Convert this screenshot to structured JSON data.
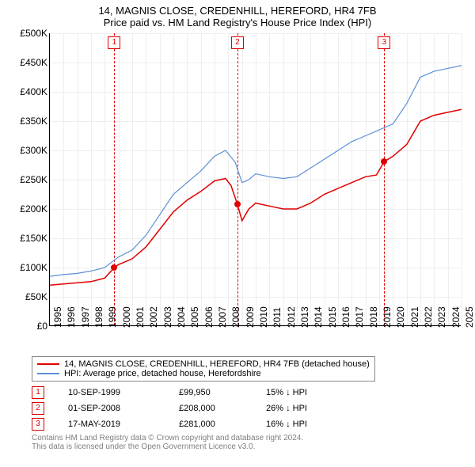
{
  "title": "14, MAGNIS CLOSE, CREDENHILL, HEREFORD, HR4 7FB",
  "subtitle": "Price paid vs. HM Land Registry's House Price Index (HPI)",
  "chart": {
    "type": "line",
    "background_color": "#ffffff",
    "grid_color": "#eeeeee",
    "axis_color": "#000000",
    "label_fontsize": 12,
    "title_fontsize": 13,
    "ylim": [
      0,
      500000
    ],
    "ytick_step": 50000,
    "y_prefix": "£",
    "y_unit": "K",
    "yticks": [
      "£0",
      "£50K",
      "£100K",
      "£150K",
      "£200K",
      "£250K",
      "£300K",
      "£350K",
      "£400K",
      "£450K",
      "£500K"
    ],
    "x_years": [
      1995,
      1996,
      1997,
      1998,
      1999,
      2000,
      2001,
      2002,
      2003,
      2004,
      2005,
      2006,
      2007,
      2008,
      2009,
      2010,
      2011,
      2012,
      2013,
      2014,
      2015,
      2016,
      2017,
      2018,
      2019,
      2020,
      2021,
      2022,
      2023,
      2024,
      2025
    ],
    "series": [
      {
        "name": "price_paid",
        "label": "14, MAGNIS CLOSE, CREDENHILL, HEREFORD, HR4 7FB (detached house)",
        "color": "#e00000",
        "line_width": 1.5,
        "points": [
          [
            1995.0,
            70
          ],
          [
            1996,
            72
          ],
          [
            1997,
            74
          ],
          [
            1998,
            76
          ],
          [
            1999,
            82
          ],
          [
            1999.7,
            99.95
          ],
          [
            2000,
            105
          ],
          [
            2001,
            115
          ],
          [
            2002,
            135
          ],
          [
            2003,
            165
          ],
          [
            2004,
            195
          ],
          [
            2005,
            215
          ],
          [
            2006,
            230
          ],
          [
            2007,
            248
          ],
          [
            2007.8,
            252
          ],
          [
            2008.2,
            240
          ],
          [
            2008.67,
            208
          ],
          [
            2009,
            180
          ],
          [
            2009.5,
            200
          ],
          [
            2010,
            210
          ],
          [
            2011,
            205
          ],
          [
            2012,
            200
          ],
          [
            2013,
            200
          ],
          [
            2014,
            210
          ],
          [
            2015,
            225
          ],
          [
            2016,
            235
          ],
          [
            2017,
            245
          ],
          [
            2018,
            255
          ],
          [
            2018.8,
            258
          ],
          [
            2019.37,
            281
          ],
          [
            2020,
            290
          ],
          [
            2021,
            310
          ],
          [
            2022,
            350
          ],
          [
            2023,
            360
          ],
          [
            2024,
            365
          ],
          [
            2025,
            370
          ]
        ]
      },
      {
        "name": "hpi",
        "label": "HPI: Average price, detached house, Herefordshire",
        "color": "#5b8fd6",
        "line_width": 1.2,
        "points": [
          [
            1995.0,
            85
          ],
          [
            1996,
            88
          ],
          [
            1997,
            90
          ],
          [
            1998,
            94
          ],
          [
            1999,
            100
          ],
          [
            2000,
            118
          ],
          [
            2001,
            130
          ],
          [
            2002,
            155
          ],
          [
            2003,
            190
          ],
          [
            2004,
            225
          ],
          [
            2005,
            245
          ],
          [
            2006,
            265
          ],
          [
            2007,
            290
          ],
          [
            2007.8,
            300
          ],
          [
            2008.5,
            280
          ],
          [
            2009,
            245
          ],
          [
            2009.5,
            250
          ],
          [
            2010,
            260
          ],
          [
            2011,
            255
          ],
          [
            2012,
            252
          ],
          [
            2013,
            255
          ],
          [
            2014,
            270
          ],
          [
            2015,
            285
          ],
          [
            2016,
            300
          ],
          [
            2017,
            315
          ],
          [
            2018,
            325
          ],
          [
            2019,
            335
          ],
          [
            2020,
            345
          ],
          [
            2021,
            380
          ],
          [
            2022,
            425
          ],
          [
            2023,
            435
          ],
          [
            2024,
            440
          ],
          [
            2025,
            445
          ]
        ]
      }
    ],
    "event_lines": [
      {
        "num": "1",
        "x": 1999.7,
        "color": "#e00000",
        "dot_y": 99.95
      },
      {
        "num": "2",
        "x": 2008.67,
        "color": "#e00000",
        "dot_y": 208
      },
      {
        "num": "3",
        "x": 2019.37,
        "color": "#e00000",
        "dot_y": 281
      }
    ]
  },
  "legend": {
    "items": [
      {
        "color": "#e00000",
        "label": "14, MAGNIS CLOSE, CREDENHILL, HEREFORD, HR4 7FB (detached house)"
      },
      {
        "color": "#5b8fd6",
        "label": "HPI: Average price, detached house, Herefordshire"
      }
    ]
  },
  "events": [
    {
      "num": "1",
      "color": "#e00000",
      "date": "10-SEP-1999",
      "price": "£99,950",
      "delta": "15% ↓ HPI"
    },
    {
      "num": "2",
      "color": "#e00000",
      "date": "01-SEP-2008",
      "price": "£208,000",
      "delta": "26% ↓ HPI"
    },
    {
      "num": "3",
      "color": "#e00000",
      "date": "17-MAY-2019",
      "price": "£281,000",
      "delta": "16% ↓ HPI"
    }
  ],
  "footer": {
    "line1": "Contains HM Land Registry data © Crown copyright and database right 2024.",
    "line2": "This data is licensed under the Open Government Licence v3.0."
  }
}
